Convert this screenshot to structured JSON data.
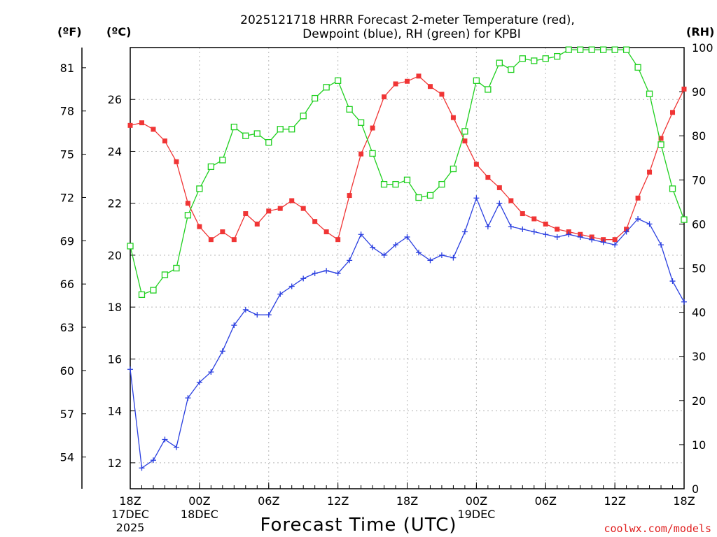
{
  "chart_data": {
    "type": "line",
    "title_line1": "2025121718 HRRR Forecast 2-meter Temperature (red),",
    "title_line2": "Dewpoint (blue), RH (green) for KPBI",
    "left_unit_f": "(ºF)",
    "left_unit_c": "(ºC)",
    "right_unit": "(RH)",
    "xlabel": "Forecast Time (UTC)",
    "credit": "coolwx.com/models",
    "x_ticks": [
      {
        "hour": 0,
        "lines": [
          "18Z",
          "17DEC",
          "2025"
        ]
      },
      {
        "hour": 6,
        "lines": [
          "00Z",
          "18DEC"
        ]
      },
      {
        "hour": 12,
        "lines": [
          "06Z"
        ]
      },
      {
        "hour": 18,
        "lines": [
          "12Z"
        ]
      },
      {
        "hour": 24,
        "lines": [
          "18Z"
        ]
      },
      {
        "hour": 30,
        "lines": [
          "00Z",
          "19DEC"
        ]
      },
      {
        "hour": 36,
        "lines": [
          "06Z"
        ]
      },
      {
        "hour": 42,
        "lines": [
          "12Z"
        ]
      },
      {
        "hour": 48,
        "lines": [
          "18Z"
        ]
      }
    ],
    "x_range": [
      0,
      48
    ],
    "celsius_range": [
      11,
      28
    ],
    "celsius_ticks": [
      12,
      14,
      16,
      18,
      20,
      22,
      24,
      26
    ],
    "fahrenheit_ticks": [
      54,
      57,
      60,
      63,
      66,
      69,
      72,
      75,
      78,
      81
    ],
    "rh_range": [
      0,
      100
    ],
    "rh_ticks": [
      0,
      10,
      20,
      30,
      40,
      50,
      60,
      70,
      80,
      90,
      100
    ],
    "grid": true,
    "series": [
      {
        "name": "Temperature",
        "color": "#f03535",
        "marker": "filled-square",
        "axis": "celsius",
        "values": [
          25.0,
          25.1,
          24.85,
          24.4,
          23.6,
          22.0,
          21.1,
          20.6,
          20.9,
          20.6,
          21.6,
          21.2,
          21.7,
          21.8,
          22.1,
          21.8,
          21.3,
          20.9,
          20.6,
          22.3,
          23.9,
          24.9,
          26.1,
          26.6,
          26.7,
          26.9,
          26.5,
          26.2,
          25.3,
          24.4,
          23.5,
          23.0,
          22.6,
          22.1,
          21.6,
          21.4,
          21.2,
          21.0,
          20.9,
          20.8,
          20.7,
          20.6,
          20.6,
          21.0,
          22.2,
          23.2,
          24.5,
          25.5,
          26.4
        ]
      },
      {
        "name": "Dewpoint",
        "color": "#2a3fe0",
        "marker": "plus",
        "axis": "celsius",
        "values": [
          15.6,
          11.8,
          12.1,
          12.9,
          12.6,
          14.5,
          15.1,
          15.5,
          16.3,
          17.3,
          17.9,
          17.7,
          17.7,
          18.5,
          18.8,
          19.1,
          19.3,
          19.4,
          19.3,
          19.8,
          20.8,
          20.3,
          20.0,
          20.4,
          20.7,
          20.1,
          19.8,
          20.0,
          19.9,
          20.9,
          22.2,
          21.1,
          22.0,
          21.1,
          21.0,
          20.9,
          20.8,
          20.7,
          20.8,
          20.7,
          20.6,
          20.5,
          20.4,
          20.9,
          21.4,
          21.2,
          20.4,
          19.0,
          18.2
        ]
      },
      {
        "name": "RH",
        "color": "#20d020",
        "marker": "open-square",
        "axis": "rh",
        "values": [
          55,
          44,
          45,
          48.5,
          50,
          62,
          68,
          73,
          74.5,
          82,
          80,
          80.5,
          78.5,
          81.5,
          81.5,
          84.5,
          88.5,
          91,
          92.5,
          86,
          83,
          76,
          69,
          69,
          70,
          66,
          66.5,
          69,
          72.5,
          81,
          92.5,
          90.5,
          96.5,
          95,
          97.5,
          97,
          97.5,
          98,
          99.5,
          99.5,
          99.5,
          99.5,
          99.5,
          99.5,
          95.5,
          89.5,
          78,
          68,
          61
        ]
      }
    ]
  }
}
